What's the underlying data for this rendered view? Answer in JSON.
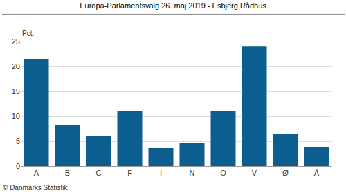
{
  "chart_data": {
    "type": "bar",
    "title": "Europa-Parlamentsvalg 26. maj 2019 - Esbjerg Rådhus",
    "y_label": "Pct.",
    "annotations": [
      "© Danmarks Statistik"
    ],
    "categories": [
      "A",
      "B",
      "C",
      "F",
      "I",
      "N",
      "O",
      "V",
      "Ø",
      "Å"
    ],
    "values": [
      21.5,
      8.2,
      6.1,
      11.0,
      3.6,
      4.6,
      11.1,
      24.0,
      6.4,
      3.9
    ],
    "color": "#0b5e8e",
    "ylim": [
      0,
      25
    ],
    "yticks": [
      0,
      5,
      10,
      15,
      20,
      25
    ],
    "grid": true
  }
}
